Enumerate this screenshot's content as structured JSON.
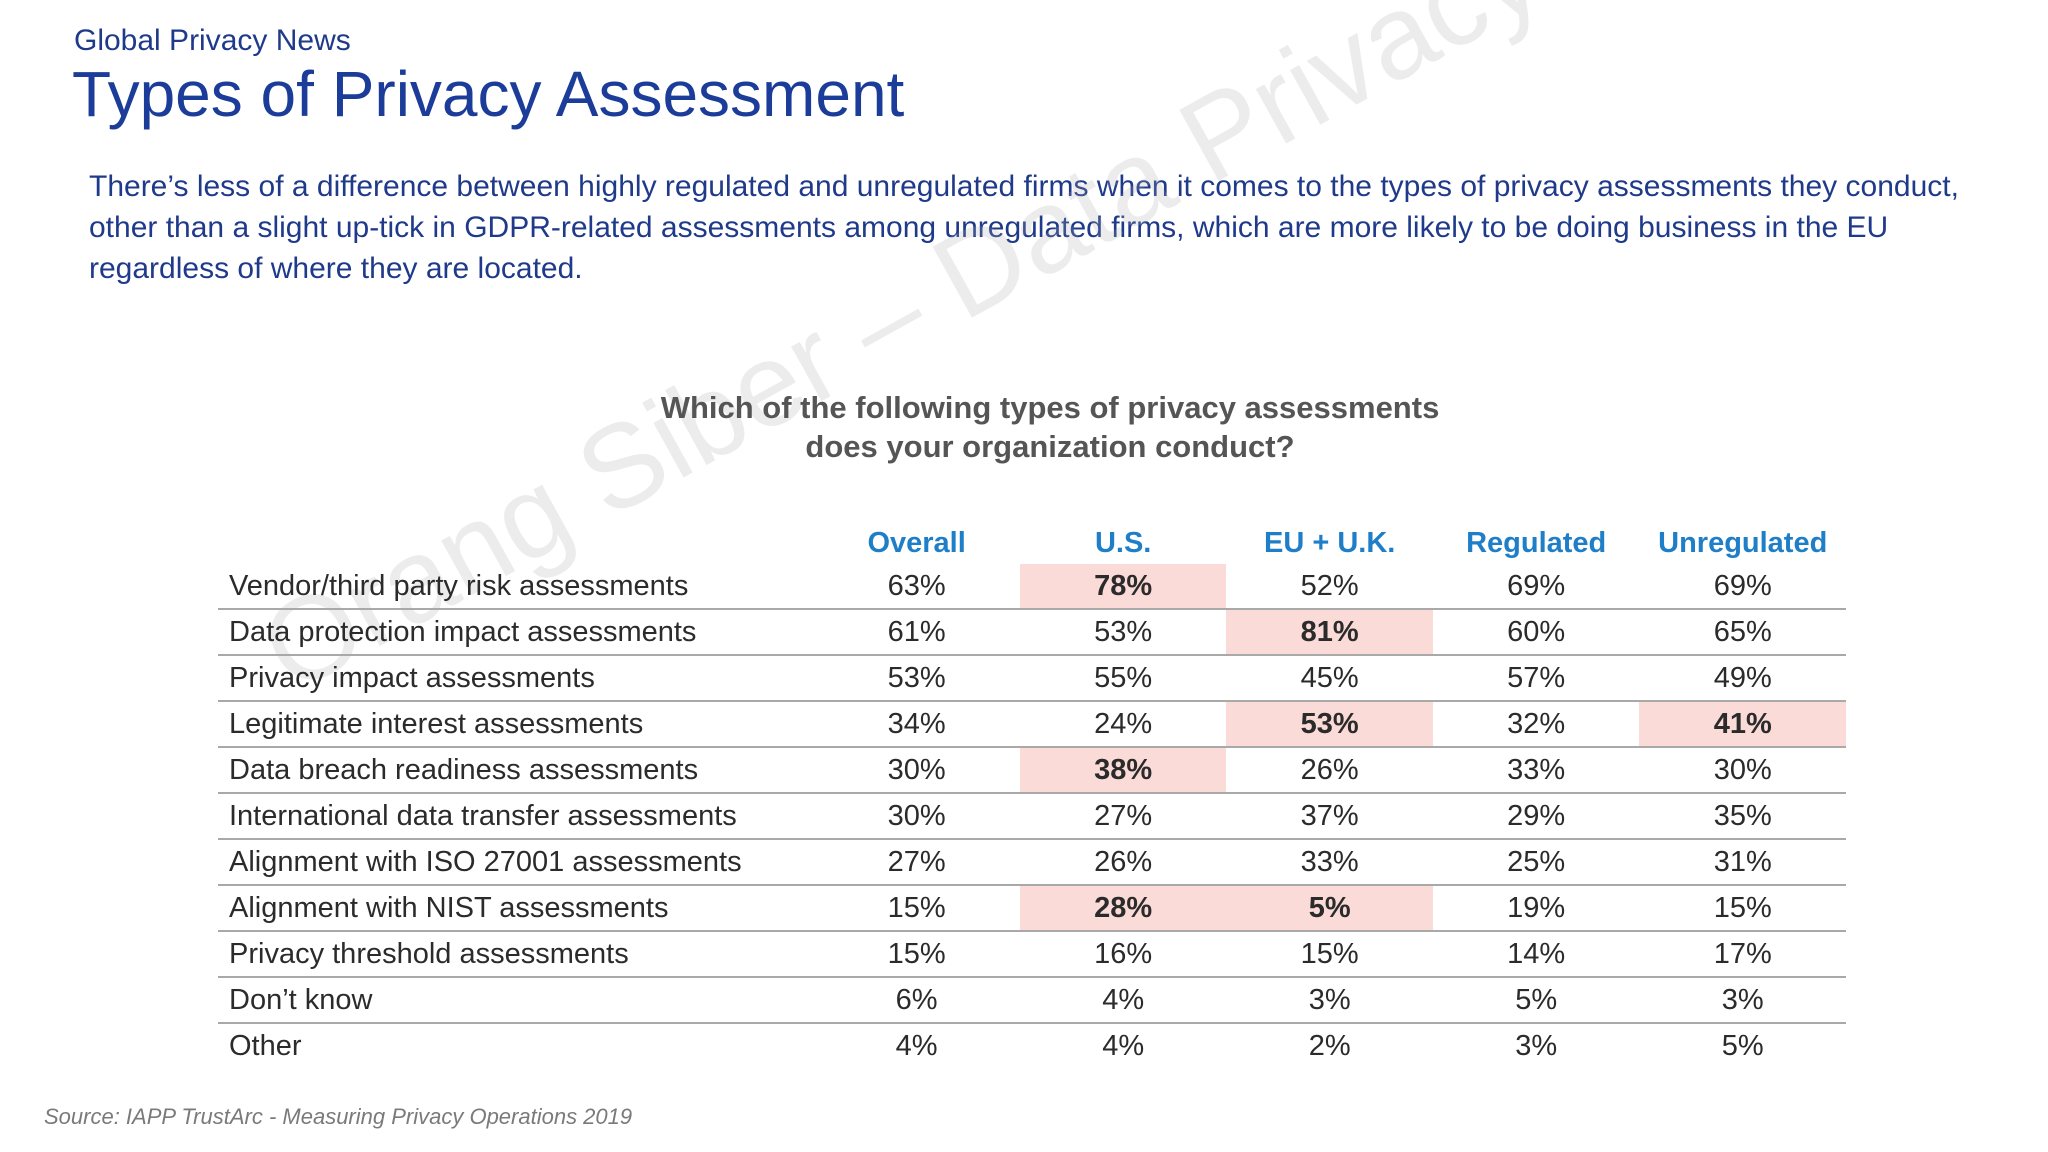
{
  "header": {
    "kicker": "Global Privacy News",
    "title": "Types of Privacy Assessment"
  },
  "intro": "There’s less of a difference between highly regulated and unregulated firms when it comes to the types of privacy assessments they conduct, other than a slight up-tick in GDPR-related assessments among unregulated firms, which are more likely to be doing business in the EU regardless of where they are located.",
  "watermark": "Orang Siber – Data Privacy",
  "survey": {
    "question_line1": "Which of the following types of privacy assessments",
    "question_line2": "does your organization conduct?",
    "columns": [
      "Overall",
      "U.S.",
      "EU + U.K.",
      "Regulated",
      "Unregulated"
    ],
    "highlight_color": "#fadbd8",
    "rows": [
      {
        "label": "Vendor/third party risk assessments",
        "values": [
          "63%",
          "78%",
          "52%",
          "69%",
          "69%"
        ],
        "highlight": [
          1
        ]
      },
      {
        "label": "Data protection impact assessments",
        "values": [
          "61%",
          "53%",
          "81%",
          "60%",
          "65%"
        ],
        "highlight": [
          2
        ]
      },
      {
        "label": "Privacy impact assessments",
        "values": [
          "53%",
          "55%",
          "45%",
          "57%",
          "49%"
        ],
        "highlight": []
      },
      {
        "label": "Legitimate interest assessments",
        "values": [
          "34%",
          "24%",
          "53%",
          "32%",
          "41%"
        ],
        "highlight": [
          2,
          4
        ]
      },
      {
        "label": "Data breach readiness assessments",
        "values": [
          "30%",
          "38%",
          "26%",
          "33%",
          "30%"
        ],
        "highlight": [
          1
        ]
      },
      {
        "label": "International data transfer assessments",
        "values": [
          "30%",
          "27%",
          "37%",
          "29%",
          "35%"
        ],
        "highlight": []
      },
      {
        "label": "Alignment with ISO 27001 assessments",
        "values": [
          "27%",
          "26%",
          "33%",
          "25%",
          "31%"
        ],
        "highlight": []
      },
      {
        "label": "Alignment with NIST assessments",
        "values": [
          "15%",
          "28%",
          "5%",
          "19%",
          "15%"
        ],
        "highlight": [
          1,
          2
        ]
      },
      {
        "label": "Privacy threshold assessments",
        "values": [
          "15%",
          "16%",
          "15%",
          "14%",
          "17%"
        ],
        "highlight": []
      },
      {
        "label": "Don’t know",
        "values": [
          "6%",
          "4%",
          "3%",
          "5%",
          "3%"
        ],
        "highlight": []
      },
      {
        "label": "Other",
        "values": [
          "4%",
          "4%",
          "2%",
          "3%",
          "5%"
        ],
        "highlight": []
      }
    ]
  },
  "source": "Source: IAPP TrustArc - Measuring Privacy Operations 2019"
}
